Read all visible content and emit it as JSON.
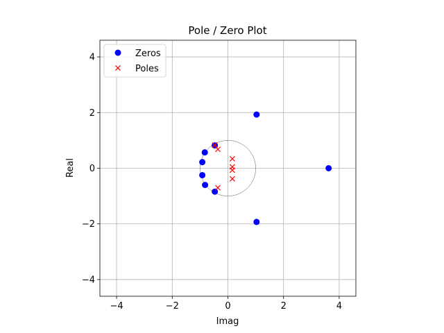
{
  "chart_data": {
    "type": "scatter",
    "title": "Pole / Zero Plot",
    "xlabel": "Imag",
    "ylabel": "Real",
    "xlim": [
      -4.6,
      4.6
    ],
    "ylim": [
      -4.6,
      4.6
    ],
    "xticks": [
      -4,
      -2,
      0,
      2,
      4
    ],
    "yticks": [
      -4,
      -2,
      0,
      2,
      4
    ],
    "xtick_labels": [
      "−4",
      "−2",
      "0",
      "2",
      "4"
    ],
    "ytick_labels": [
      "−4",
      "−2",
      "0",
      "2",
      "4"
    ],
    "grid": true,
    "legend_position": "top-left",
    "unit_circle": true,
    "series": [
      {
        "name": "Zeros",
        "marker": "circle",
        "color": "#0000ff",
        "points": [
          {
            "x": 1.03,
            "y": 1.93
          },
          {
            "x": 1.03,
            "y": -1.93
          },
          {
            "x": 3.62,
            "y": 0.0
          },
          {
            "x": -0.47,
            "y": 0.82
          },
          {
            "x": -0.47,
            "y": -0.84
          },
          {
            "x": -0.83,
            "y": 0.57
          },
          {
            "x": -0.82,
            "y": -0.6
          },
          {
            "x": -0.92,
            "y": 0.22
          },
          {
            "x": -0.92,
            "y": -0.25
          }
        ]
      },
      {
        "name": "Poles",
        "marker": "x",
        "color": "#ff0000",
        "points": [
          {
            "x": -0.47,
            "y": 0.83
          },
          {
            "x": -0.36,
            "y": 0.68
          },
          {
            "x": -0.36,
            "y": -0.7
          },
          {
            "x": 0.16,
            "y": 0.34
          },
          {
            "x": 0.16,
            "y": 0.05
          },
          {
            "x": 0.16,
            "y": -0.07
          },
          {
            "x": 0.16,
            "y": -0.38
          }
        ]
      }
    ]
  }
}
